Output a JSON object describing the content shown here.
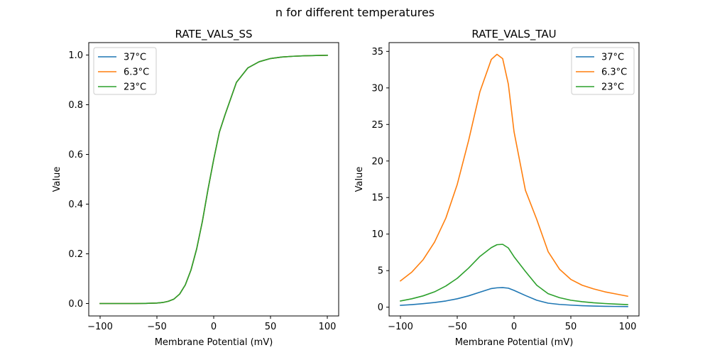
{
  "figure": {
    "suptitle": "n for different temperatures"
  },
  "chart_data": [
    {
      "type": "line",
      "title": "RATE_VALS_SS",
      "xlabel": "Membrane Potential (mV)",
      "ylabel": "Value",
      "xlim": [
        -110,
        110
      ],
      "ylim": [
        -0.05,
        1.05
      ],
      "xticks": [
        -100,
        -50,
        0,
        50,
        100
      ],
      "yticks": [
        0.0,
        0.2,
        0.4,
        0.6,
        0.8,
        1.0
      ],
      "ytick_labels": [
        "0.0",
        "0.2",
        "0.4",
        "0.6",
        "0.8",
        "1.0"
      ],
      "grid": false,
      "legend": "upper-left",
      "x": [
        -100,
        -90,
        -80,
        -70,
        -60,
        -50,
        -45,
        -40,
        -35,
        -30,
        -25,
        -20,
        -15,
        -10,
        -5,
        0,
        5,
        10,
        20,
        30,
        40,
        50,
        60,
        70,
        80,
        90,
        100
      ],
      "series": [
        {
          "name": "37°C",
          "color": "#1f77b4",
          "values": [
            0.0,
            0.0,
            0.0,
            0.0,
            0.0005,
            0.002,
            0.004,
            0.009,
            0.018,
            0.038,
            0.075,
            0.135,
            0.22,
            0.33,
            0.46,
            0.58,
            0.69,
            0.76,
            0.89,
            0.948,
            0.973,
            0.986,
            0.992,
            0.995,
            0.997,
            0.998,
            0.999
          ]
        },
        {
          "name": "6.3°C",
          "color": "#ff7f0e",
          "values": [
            0.0,
            0.0,
            0.0,
            0.0,
            0.0005,
            0.002,
            0.004,
            0.009,
            0.018,
            0.038,
            0.075,
            0.135,
            0.22,
            0.33,
            0.46,
            0.58,
            0.69,
            0.76,
            0.89,
            0.948,
            0.973,
            0.986,
            0.992,
            0.995,
            0.997,
            0.998,
            0.999
          ]
        },
        {
          "name": "23°C",
          "color": "#2ca02c",
          "values": [
            0.0,
            0.0,
            0.0,
            0.0,
            0.0005,
            0.002,
            0.004,
            0.009,
            0.018,
            0.038,
            0.075,
            0.135,
            0.22,
            0.33,
            0.46,
            0.58,
            0.69,
            0.76,
            0.89,
            0.948,
            0.973,
            0.986,
            0.992,
            0.995,
            0.997,
            0.998,
            0.999
          ]
        }
      ]
    },
    {
      "type": "line",
      "title": "RATE_VALS_TAU",
      "xlabel": "Membrane Potential (mV)",
      "ylabel": "Value",
      "xlim": [
        -110,
        110
      ],
      "ylim": [
        -1.2,
        36.2
      ],
      "xticks": [
        -100,
        -50,
        0,
        50,
        100
      ],
      "yticks": [
        0,
        5,
        10,
        15,
        20,
        25,
        30,
        35
      ],
      "ytick_labels": [
        "0",
        "5",
        "10",
        "15",
        "20",
        "25",
        "30",
        "35"
      ],
      "grid": false,
      "legend": "upper-right",
      "x": [
        -100,
        -90,
        -80,
        -70,
        -60,
        -50,
        -40,
        -30,
        -20,
        -15,
        -10,
        -5,
        0,
        10,
        20,
        30,
        40,
        50,
        60,
        70,
        80,
        90,
        100
      ],
      "series": [
        {
          "name": "37°C",
          "color": "#1f77b4",
          "values": [
            0.25,
            0.35,
            0.48,
            0.64,
            0.85,
            1.15,
            1.55,
            2.05,
            2.55,
            2.65,
            2.68,
            2.6,
            2.3,
            1.6,
            0.95,
            0.55,
            0.38,
            0.28,
            0.2,
            0.15,
            0.12,
            0.1,
            0.08
          ]
        },
        {
          "name": "6.3°C",
          "color": "#ff7f0e",
          "values": [
            3.6,
            4.8,
            6.5,
            8.9,
            12.2,
            16.8,
            22.8,
            29.5,
            33.9,
            34.6,
            34.0,
            30.5,
            24.0,
            16.0,
            12.0,
            7.6,
            5.2,
            3.8,
            3.0,
            2.5,
            2.1,
            1.8,
            1.5
          ]
        },
        {
          "name": "23°C",
          "color": "#2ca02c",
          "values": [
            0.85,
            1.15,
            1.55,
            2.1,
            2.9,
            3.95,
            5.35,
            6.95,
            8.15,
            8.55,
            8.6,
            8.1,
            6.9,
            4.9,
            3.0,
            1.85,
            1.3,
            0.95,
            0.75,
            0.6,
            0.5,
            0.42,
            0.35
          ]
        }
      ]
    }
  ]
}
